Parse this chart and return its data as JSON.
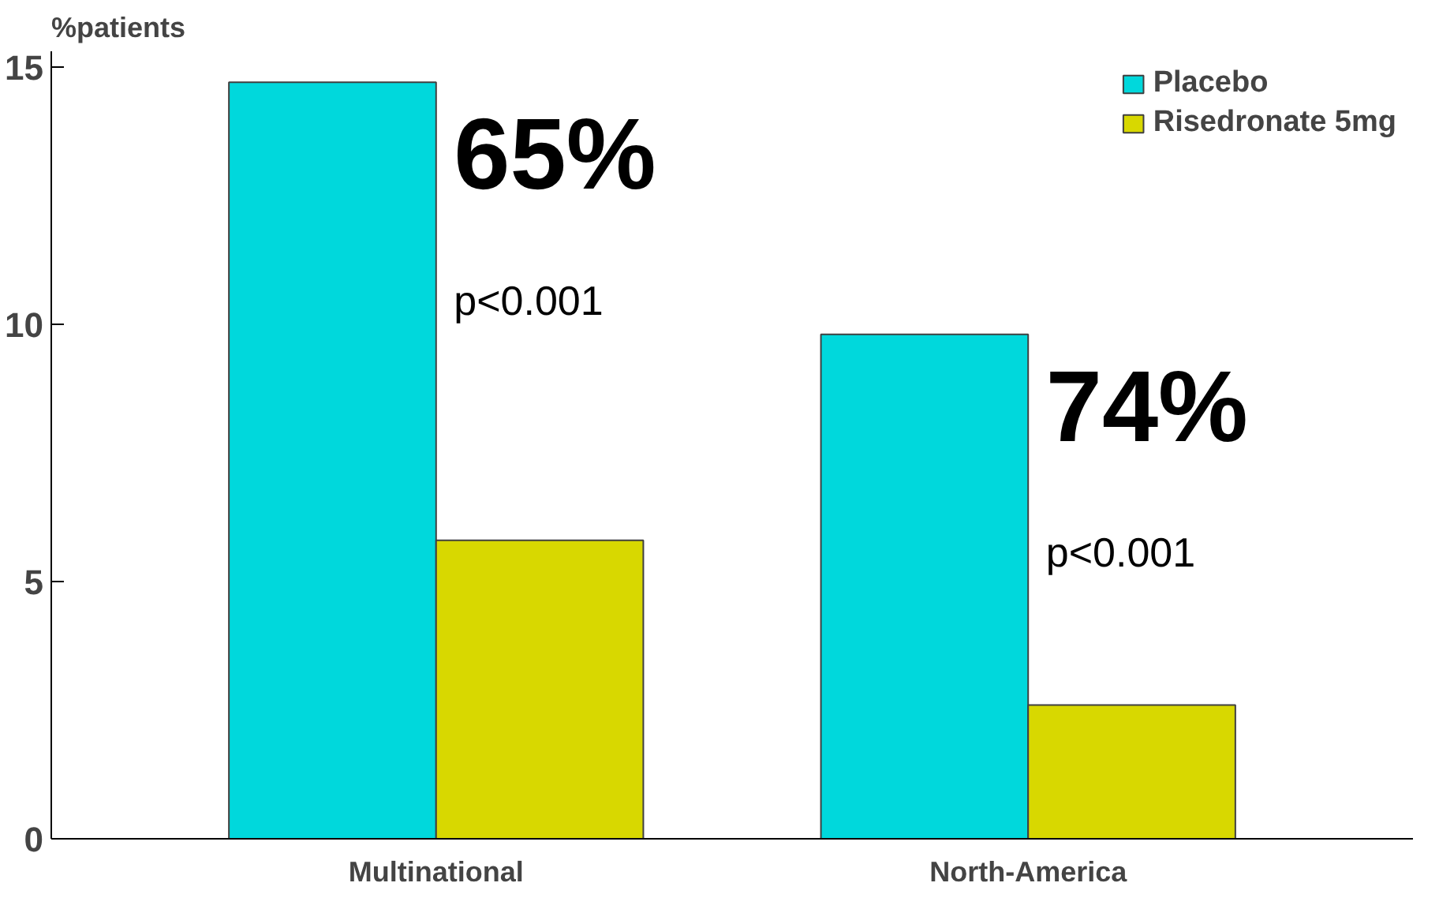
{
  "chart_data": {
    "type": "bar",
    "ylabel": "%patients",
    "categories": [
      "Multinational",
      "North-America"
    ],
    "series": [
      {
        "name": "Placebo",
        "color": "#00d8dc",
        "values": [
          14.7,
          9.8
        ]
      },
      {
        "name": "Risedronate 5mg",
        "color": "#d8d800",
        "values": [
          5.8,
          2.6
        ]
      }
    ],
    "ylim": [
      0,
      15.3
    ],
    "yticks": [
      0,
      5,
      10,
      15
    ],
    "grid": false,
    "legend": "top right",
    "annotations": [
      {
        "text": "65%",
        "x": "Multinational",
        "y": 12.2
      },
      {
        "text": "p<0.001",
        "x": "Multinational",
        "y": 10.0
      },
      {
        "text": "74%",
        "x": "North-America",
        "y": 7.3
      },
      {
        "text": "p<0.001",
        "x": "North-America",
        "y": 5.1
      }
    ]
  }
}
